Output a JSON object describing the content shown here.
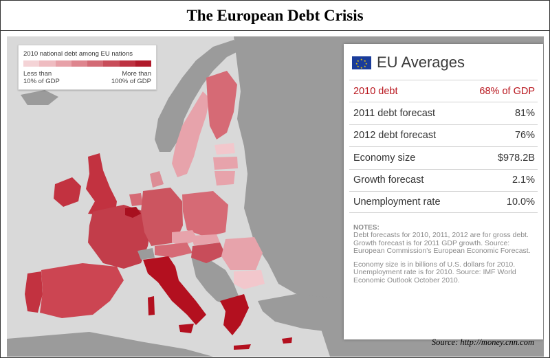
{
  "title": "The European Debt Crisis",
  "legend": {
    "title": "2010 national debt among EU nations",
    "low_label_1": "Less than",
    "low_label_2": "10% of GDP",
    "high_label_1": "More than",
    "high_label_2": "100% of GDP",
    "scale_colors": [
      "#f4d3d6",
      "#efbcc1",
      "#e7a1a8",
      "#de858e",
      "#d36a75",
      "#c84d5a",
      "#bd3241",
      "#b01a2b"
    ]
  },
  "panel": {
    "title": "EU Averages",
    "rows": [
      {
        "label": "2010 debt",
        "value": "68% of GDP"
      },
      {
        "label": "2011 debt forecast",
        "value": "81%"
      },
      {
        "label": "2012 debt forecast",
        "value": "76%"
      },
      {
        "label": "Economy size",
        "value": "$978.2B"
      },
      {
        "label": "Growth forecast",
        "value": "2.1%"
      },
      {
        "label": "Unemployment rate",
        "value": "10.0%"
      }
    ],
    "notes_heading": "NOTES:",
    "note_1": "Debt forecasts for 2010, 2011, 2012 are for gross debt. Growth forecast is for 2011 GDP growth. Source: European Commission's European Economic Forecast.",
    "note_2": "Economy size is in billions of U.S. dollars for 2010. Unemployment rate is for 2010. Source: IMF World Economic Outlook October 2010."
  },
  "source": "Source:  http://money.cnn.com",
  "colors": {
    "highlight": "#b8141c",
    "sea": "#d9d9d9",
    "non_eu_land": "#9a9a9a"
  }
}
